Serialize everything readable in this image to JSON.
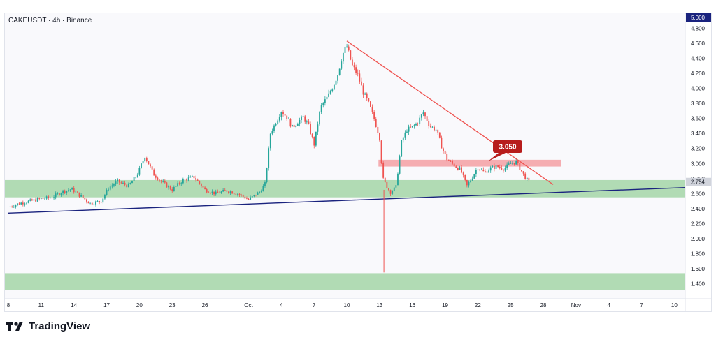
{
  "symbol_label": "CAKEUSDT · 4h · Binance",
  "brand": {
    "name": "TradingView"
  },
  "colors": {
    "up": "#26a69a",
    "down": "#ef5350",
    "support_zone": "#a5d6a7",
    "resistance_zone": "#f4a4a8",
    "trendline": "#1a237e",
    "downtrend": "#ef5350",
    "callout": "#b71c1c",
    "current_price_tag": "#9598a1"
  },
  "chart_data": {
    "type": "candlestick",
    "title": "CAKEUSDT · 4h · Binance",
    "y_axis": {
      "ticks": [
        1.4,
        1.6,
        1.8,
        2.0,
        2.2,
        2.4,
        2.6,
        2.8,
        3.0,
        3.2,
        3.4,
        3.6,
        3.8,
        4.0,
        4.2,
        4.4,
        4.6,
        4.8
      ],
      "tick_labels": [
        "1.400",
        "1.600",
        "1.800",
        "2.000",
        "2.200",
        "2.400",
        "2.600",
        "2.800",
        "3.000",
        "3.200",
        "3.400",
        "3.600",
        "3.800",
        "4.000",
        "4.200",
        "4.400",
        "4.600",
        "4.800"
      ],
      "range": [
        1.2,
        5.0
      ],
      "top_label": "5.000",
      "current_price": 2.754,
      "current_price_label": "2.754"
    },
    "x_axis": {
      "ticks": [
        {
          "day": 8,
          "label": "8"
        },
        {
          "day": 11,
          "label": "11"
        },
        {
          "day": 14,
          "label": "14"
        },
        {
          "day": 17,
          "label": "17"
        },
        {
          "day": 20,
          "label": "20"
        },
        {
          "day": 23,
          "label": "23"
        },
        {
          "day": 26,
          "label": "26"
        },
        {
          "day": 30,
          "label": "Oct"
        },
        {
          "day": 33,
          "label": "4"
        },
        {
          "day": 36,
          "label": "7"
        },
        {
          "day": 39,
          "label": "10"
        },
        {
          "day": 42,
          "label": "13"
        },
        {
          "day": 45,
          "label": "16"
        },
        {
          "day": 48,
          "label": "19"
        },
        {
          "day": 51,
          "label": "22"
        },
        {
          "day": 54,
          "label": "25"
        },
        {
          "day": 57,
          "label": "28"
        },
        {
          "day": 60,
          "label": "Nov"
        },
        {
          "day": 63,
          "label": "4"
        },
        {
          "day": 66,
          "label": "7"
        },
        {
          "day": 69,
          "label": "10"
        }
      ],
      "range": [
        8,
        70
      ]
    },
    "price_path": [
      [
        8.0,
        2.42
      ],
      [
        9.0,
        2.47
      ],
      [
        10.0,
        2.5
      ],
      [
        11.0,
        2.53
      ],
      [
        12.0,
        2.55
      ],
      [
        13.0,
        2.63
      ],
      [
        13.8,
        2.66
      ],
      [
        14.5,
        2.58
      ],
      [
        15.5,
        2.47
      ],
      [
        16.5,
        2.5
      ],
      [
        17.2,
        2.68
      ],
      [
        18.0,
        2.76
      ],
      [
        19.0,
        2.7
      ],
      [
        19.8,
        2.85
      ],
      [
        20.5,
        3.1
      ],
      [
        21.3,
        2.86
      ],
      [
        22.0,
        2.76
      ],
      [
        23.0,
        2.65
      ],
      [
        24.0,
        2.78
      ],
      [
        25.0,
        2.82
      ],
      [
        26.0,
        2.65
      ],
      [
        27.0,
        2.6
      ],
      [
        28.0,
        2.64
      ],
      [
        29.0,
        2.6
      ],
      [
        29.5,
        2.56
      ],
      [
        30.0,
        2.52
      ],
      [
        31.0,
        2.62
      ],
      [
        31.5,
        2.72
      ],
      [
        32.0,
        3.4
      ],
      [
        32.5,
        3.55
      ],
      [
        33.0,
        3.7
      ],
      [
        33.5,
        3.62
      ],
      [
        34.0,
        3.48
      ],
      [
        35.0,
        3.62
      ],
      [
        35.5,
        3.5
      ],
      [
        36.0,
        3.25
      ],
      [
        36.6,
        3.75
      ],
      [
        37.3,
        3.9
      ],
      [
        37.8,
        4.05
      ],
      [
        38.2,
        4.2
      ],
      [
        38.6,
        4.45
      ],
      [
        39.0,
        4.56
      ],
      [
        39.5,
        4.3
      ],
      [
        40.0,
        4.18
      ],
      [
        40.5,
        3.95
      ],
      [
        41.0,
        3.8
      ],
      [
        41.5,
        3.6
      ],
      [
        42.0,
        3.35
      ],
      [
        42.3,
        2.8
      ],
      [
        42.7,
        2.68
      ],
      [
        43.0,
        2.62
      ],
      [
        43.5,
        2.68
      ],
      [
        44.0,
        3.28
      ],
      [
        44.5,
        3.45
      ],
      [
        45.0,
        3.48
      ],
      [
        45.5,
        3.55
      ],
      [
        46.0,
        3.68
      ],
      [
        46.6,
        3.5
      ],
      [
        47.2,
        3.45
      ],
      [
        47.7,
        3.22
      ],
      [
        48.2,
        3.05
      ],
      [
        48.8,
        2.98
      ],
      [
        49.4,
        2.92
      ],
      [
        50.0,
        2.7
      ],
      [
        50.5,
        2.82
      ],
      [
        51.0,
        2.95
      ],
      [
        51.6,
        2.88
      ],
      [
        52.2,
        2.94
      ],
      [
        52.8,
        2.96
      ],
      [
        53.4,
        2.93
      ],
      [
        54.0,
        3.0
      ],
      [
        54.5,
        3.02
      ],
      [
        55.0,
        2.9
      ],
      [
        55.4,
        2.8
      ],
      [
        55.7,
        2.754
      ]
    ],
    "annotations": {
      "callout_label": "3.050",
      "support_zone": {
        "from": 2.55,
        "to": 2.78
      },
      "lower_zone": {
        "from": 1.32,
        "to": 1.54
      },
      "resistance_zone": {
        "from": 2.96,
        "to": 3.05,
        "x_from": 41.9,
        "x_to": 58.6
      },
      "ascending_trendline": {
        "x1": 8.0,
        "y1": 2.34,
        "x2": 70.0,
        "y2": 2.68
      },
      "descending_trendline": {
        "x1": 39.0,
        "y1": 4.63,
        "x2": 57.9,
        "y2": 2.72
      },
      "wick_to_low": {
        "x": 42.4,
        "from": 2.65,
        "to": 1.55
      }
    }
  }
}
